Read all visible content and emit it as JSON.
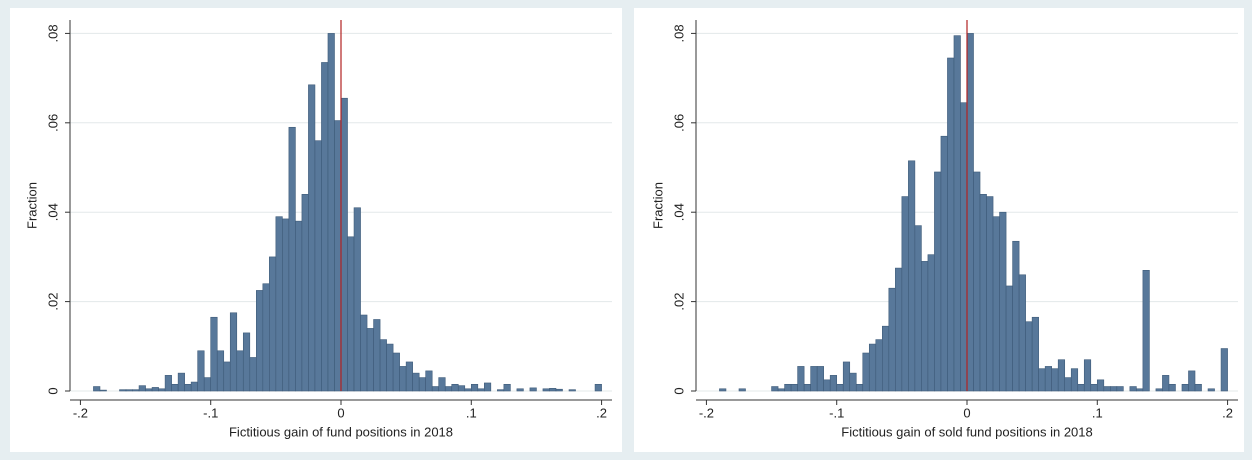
{
  "chart_data": [
    {
      "type": "histogram",
      "xlabel": "Fictitious gain of fund positions in 2018",
      "ylabel": "Fraction",
      "bins": [
        -0.2,
        -0.195,
        -0.19,
        -0.185,
        -0.18,
        -0.175,
        -0.17,
        -0.165,
        -0.16,
        -0.155,
        -0.15,
        -0.145,
        -0.14,
        -0.135,
        -0.13,
        -0.125,
        -0.12,
        -0.115,
        -0.11,
        -0.105,
        -0.1,
        -0.095,
        -0.09,
        -0.085,
        -0.08,
        -0.075,
        -0.07,
        -0.065,
        -0.06,
        -0.055,
        -0.05,
        -0.045,
        -0.04,
        -0.035,
        -0.03,
        -0.025,
        -0.02,
        -0.015,
        -0.01,
        -0.005,
        0,
        0.005,
        0.01,
        0.015,
        0.02,
        0.025,
        0.03,
        0.035,
        0.04,
        0.045,
        0.05,
        0.055,
        0.06,
        0.065,
        0.07,
        0.075,
        0.08,
        0.085,
        0.09,
        0.095,
        0.1,
        0.105,
        0.11,
        0.115,
        0.12,
        0.125,
        0.13,
        0.135,
        0.14,
        0.145,
        0.15,
        0.155,
        0.16,
        0.165,
        0.17,
        0.175,
        0.18,
        0.185,
        0.19,
        0.195,
        0.2
      ],
      "values": [
        0,
        0,
        0.001,
        0.0002,
        0,
        0,
        0.0003,
        0.0003,
        0.0003,
        0.0012,
        0.0005,
        0.0008,
        0.0005,
        0.0035,
        0.0015,
        0.004,
        0.0015,
        0.002,
        0.009,
        0.003,
        0.0165,
        0.009,
        0.0065,
        0.0175,
        0.009,
        0.013,
        0.0075,
        0.0225,
        0.024,
        0.03,
        0.039,
        0.0385,
        0.059,
        0.038,
        0.044,
        0.0685,
        0.056,
        0.0735,
        0.08,
        0.0605,
        0.0655,
        0.0345,
        0.041,
        0.017,
        0.014,
        0.016,
        0.0115,
        0.0105,
        0.0085,
        0.0055,
        0.0065,
        0.004,
        0.003,
        0.0045,
        0.001,
        0.003,
        0.001,
        0.0015,
        0.0012,
        0.0005,
        0.0015,
        0.0005,
        0.0018,
        0,
        0.0003,
        0.0015,
        0,
        0.0005,
        0,
        0.0007,
        0,
        0.0005,
        0.0006,
        0.0004,
        0,
        0.0003,
        0,
        0,
        0,
        0.0015
      ],
      "color": "#58789a",
      "xline": 0,
      "xline_color": "#b22222",
      "xlim": [
        -0.208,
        0.208
      ],
      "ylim": [
        0,
        0.083
      ],
      "xticks": [
        {
          "value": -0.2,
          "label": "-.2"
        },
        {
          "value": -0.1,
          "label": "-.1"
        },
        0,
        {
          "value": 0.1,
          "label": ".1"
        },
        {
          "value": 0.2,
          "label": ".2"
        }
      ],
      "yticks": [
        0,
        {
          "value": 0.02,
          "label": ".02"
        },
        {
          "value": 0.04,
          "label": ".04"
        },
        {
          "value": 0.06,
          "label": ".06"
        },
        {
          "value": 0.08,
          "label": ".08"
        }
      ],
      "grid": true
    },
    {
      "type": "histogram",
      "xlabel": "Fictitious gain of sold fund positions in 2018",
      "ylabel": "Fraction",
      "bins": [
        -0.2,
        -0.195,
        -0.19,
        -0.185,
        -0.18,
        -0.175,
        -0.17,
        -0.165,
        -0.16,
        -0.155,
        -0.15,
        -0.145,
        -0.14,
        -0.135,
        -0.13,
        -0.125,
        -0.12,
        -0.115,
        -0.11,
        -0.105,
        -0.1,
        -0.095,
        -0.09,
        -0.085,
        -0.08,
        -0.075,
        -0.07,
        -0.065,
        -0.06,
        -0.055,
        -0.05,
        -0.045,
        -0.04,
        -0.035,
        -0.03,
        -0.025,
        -0.02,
        -0.015,
        -0.01,
        -0.005,
        0,
        0.005,
        0.01,
        0.015,
        0.02,
        0.025,
        0.03,
        0.035,
        0.04,
        0.045,
        0.05,
        0.055,
        0.06,
        0.065,
        0.07,
        0.075,
        0.08,
        0.085,
        0.09,
        0.095,
        0.1,
        0.105,
        0.11,
        0.115,
        0.12,
        0.125,
        0.13,
        0.135,
        0.14,
        0.145,
        0.15,
        0.155,
        0.16,
        0.165,
        0.17,
        0.175,
        0.18,
        0.185,
        0.19,
        0.195,
        0.2
      ],
      "values": [
        0,
        0,
        0.0005,
        0,
        0,
        0.0005,
        0,
        0,
        0,
        0,
        0.001,
        0.0005,
        0.0015,
        0.0015,
        0.0055,
        0.0015,
        0.0055,
        0.0055,
        0.0025,
        0.0035,
        0.0015,
        0.0065,
        0.004,
        0.0015,
        0.0085,
        0.0105,
        0.0115,
        0.0145,
        0.023,
        0.0275,
        0.0435,
        0.0515,
        0.037,
        0.029,
        0.0305,
        0.049,
        0.057,
        0.0745,
        0.0795,
        0.0645,
        0.08,
        0.049,
        0.044,
        0.0435,
        0.039,
        0.04,
        0.0235,
        0.0335,
        0.026,
        0.0155,
        0.0165,
        0.005,
        0.0055,
        0.005,
        0.007,
        0.003,
        0.005,
        0.0015,
        0.007,
        0.0015,
        0.0025,
        0.001,
        0.001,
        0.001,
        0,
        0.001,
        0.0005,
        0.027,
        0,
        0.0005,
        0.0035,
        0.0015,
        0,
        0.0015,
        0.0045,
        0.0015,
        0,
        0.0005,
        0,
        0.0095
      ],
      "color": "#58789a",
      "xline": 0,
      "xline_color": "#b22222",
      "xlim": [
        -0.208,
        0.208
      ],
      "ylim": [
        0,
        0.083
      ],
      "xticks": [
        {
          "value": -0.2,
          "label": "-.2"
        },
        {
          "value": -0.1,
          "label": "-.1"
        },
        0,
        {
          "value": 0.1,
          "label": ".1"
        },
        {
          "value": 0.2,
          "label": ".2"
        }
      ],
      "yticks": [
        0,
        {
          "value": 0.02,
          "label": ".02"
        },
        {
          "value": 0.04,
          "label": ".04"
        },
        {
          "value": 0.06,
          "label": ".06"
        },
        {
          "value": 0.08,
          "label": ".08"
        }
      ],
      "grid": true
    }
  ]
}
